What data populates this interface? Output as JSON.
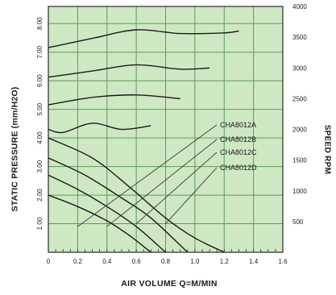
{
  "chart_data": {
    "type": "line",
    "xlabel": "AIR VOLUME  Q=M/MIN",
    "ylabel": "STATIC PRESSURE  (mm/H2O)",
    "y2label": "SPEED  RPM",
    "x_ticks": [
      "0",
      "0.2",
      "0.4",
      "0.6",
      "0.8",
      "1.0",
      "1.2",
      "1.4",
      "1.6"
    ],
    "xlim": [
      0,
      1.6
    ],
    "y_ticks": [
      "1.00",
      "2.00",
      "3.00",
      "4.00",
      "5.00",
      "6.00",
      "7.00",
      "8.00"
    ],
    "ylim": [
      0,
      8.6
    ],
    "y2_ticks": [
      "500",
      "1000",
      "1500",
      "2000",
      "2500",
      "3000",
      "3500",
      "4000"
    ],
    "y2lim": [
      0,
      4000
    ],
    "grid": true,
    "plot_bg": "#cfe8c4",
    "grid_color": "#5f9a5a",
    "line_color": "#1a1a1a",
    "pressure_series": [
      {
        "name": "CHA8012A",
        "points": [
          [
            0,
            2.0
          ],
          [
            0.2,
            1.6
          ],
          [
            0.4,
            1.1
          ],
          [
            0.55,
            0.6
          ],
          [
            0.7,
            0.0
          ]
        ]
      },
      {
        "name": "CHA8012B",
        "points": [
          [
            0,
            2.7
          ],
          [
            0.2,
            2.2
          ],
          [
            0.4,
            1.6
          ],
          [
            0.6,
            0.9
          ],
          [
            0.8,
            0.0
          ]
        ]
      },
      {
        "name": "CHA8012C",
        "points": [
          [
            0,
            3.3
          ],
          [
            0.25,
            2.7
          ],
          [
            0.5,
            1.9
          ],
          [
            0.7,
            1.2
          ],
          [
            0.95,
            0.0
          ]
        ]
      },
      {
        "name": "CHA8012D",
        "points": [
          [
            0,
            4.0
          ],
          [
            0.3,
            3.3
          ],
          [
            0.55,
            2.3
          ],
          [
            0.8,
            1.2
          ],
          [
            1.0,
            0.5
          ],
          [
            1.2,
            0.0
          ]
        ]
      }
    ],
    "speed_series": [
      {
        "name": "CHA8012A",
        "points": [
          [
            0,
            2000
          ],
          [
            0.1,
            1950
          ],
          [
            0.3,
            2100
          ],
          [
            0.5,
            2000
          ],
          [
            0.7,
            2060
          ]
        ]
      },
      {
        "name": "CHA8012B",
        "points": [
          [
            0,
            2400
          ],
          [
            0.3,
            2520
          ],
          [
            0.6,
            2560
          ],
          [
            0.9,
            2500
          ]
        ]
      },
      {
        "name": "CHA8012C",
        "points": [
          [
            0,
            2850
          ],
          [
            0.3,
            2950
          ],
          [
            0.6,
            3050
          ],
          [
            0.9,
            2980
          ],
          [
            1.1,
            3000
          ]
        ]
      },
      {
        "name": "CHA8012D",
        "points": [
          [
            0,
            3330
          ],
          [
            0.3,
            3480
          ],
          [
            0.6,
            3620
          ],
          [
            0.9,
            3560
          ],
          [
            1.2,
            3570
          ],
          [
            1.3,
            3600
          ]
        ]
      }
    ],
    "legend": [
      "CHA8012A",
      "CHA8012B",
      "CHA8012C",
      "CHA8012D"
    ]
  }
}
